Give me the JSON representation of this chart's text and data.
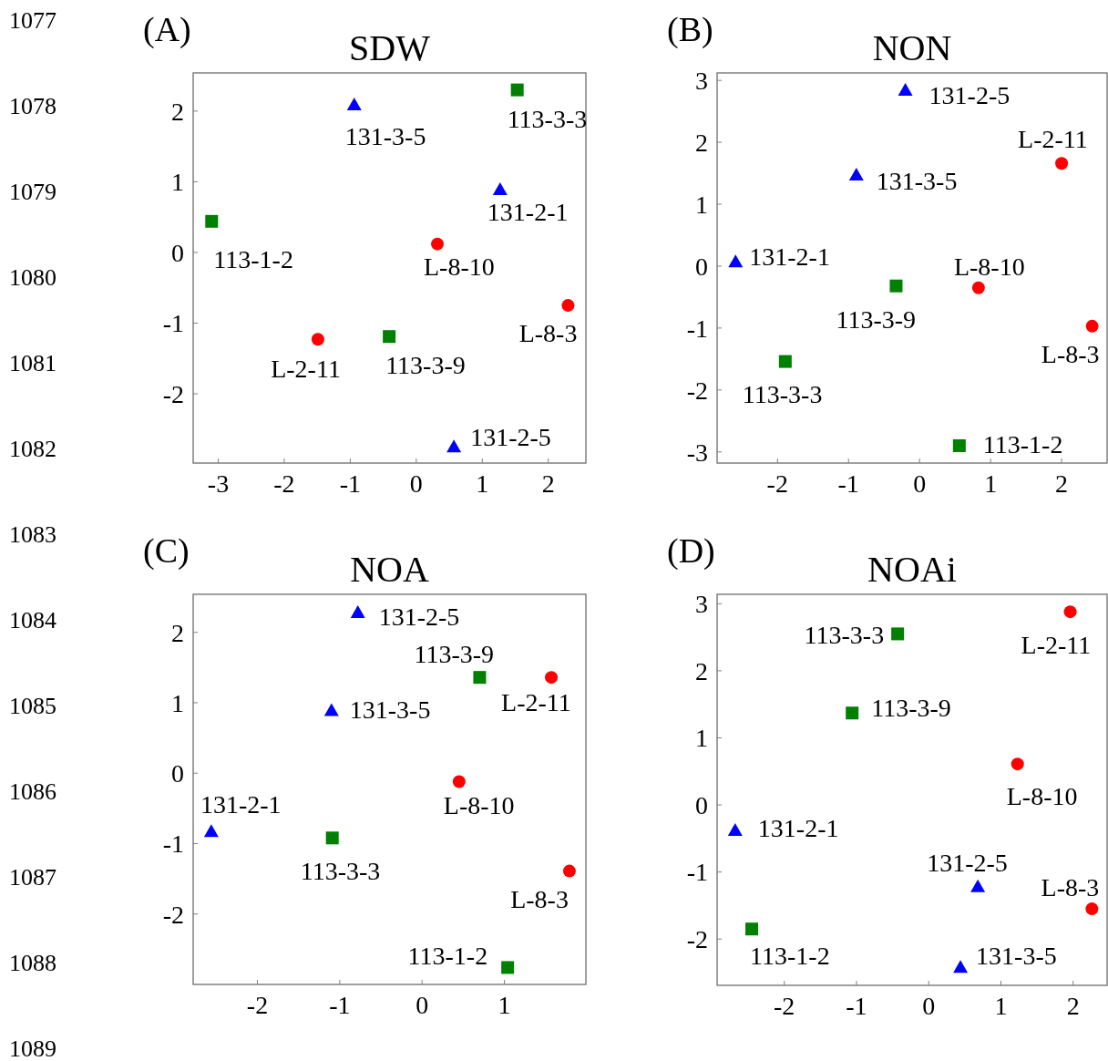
{
  "chart_data": [
    {
      "type": "scatter",
      "title": "SDW",
      "xlim": [
        -3.38,
        2.57
      ],
      "ylim": [
        -2.98,
        2.54
      ],
      "xticks": [
        -3,
        -2,
        -1,
        0,
        1,
        2
      ],
      "yticks": [
        -2,
        -1,
        0,
        1,
        2
      ],
      "series": [
        {
          "color": "#ff0000",
          "marker": "circle",
          "x": [
            0.32,
            2.3,
            -1.49
          ],
          "values": [
            0.12,
            -0.75,
            -1.23
          ]
        },
        {
          "color": "#008000",
          "marker": "square",
          "x": [
            1.53,
            -3.1,
            -0.41
          ],
          "values": [
            2.3,
            0.44,
            -1.19
          ]
        },
        {
          "color": "#0000ff",
          "marker": "triangle",
          "x": [
            -0.94,
            1.27,
            0.57
          ],
          "values": [
            2.09,
            0.89,
            -2.75
          ]
        }
      ],
      "annotations": [
        "(A)",
        {
          "text": "113-3-3",
          "x": 1.53,
          "y": 2.3
        },
        {
          "text": "131-3-5",
          "x": -0.94,
          "y": 2.09
        },
        {
          "text": "131-2-1",
          "x": 1.27,
          "y": 0.89
        },
        {
          "text": "113-1-2",
          "x": -3.1,
          "y": 0.44
        },
        {
          "text": "L-8-10",
          "x": 0.32,
          "y": 0.12
        },
        {
          "text": "L-8-3",
          "x": 2.3,
          "y": -0.75
        },
        {
          "text": "L-2-11",
          "x": -1.49,
          "y": -1.23
        },
        {
          "text": "113-3-9",
          "x": -0.41,
          "y": -1.19
        },
        {
          "text": "131-2-5",
          "x": 0.57,
          "y": -2.75
        },
        "1077",
        "1078",
        "1079",
        "1080",
        "1081",
        "1082",
        "1083",
        "1084",
        "1085",
        "1086",
        "1087",
        "1088",
        "1089"
      ]
    },
    {
      "type": "scatter",
      "title": "NON",
      "xlim": [
        -2.85,
        2.64
      ],
      "ylim": [
        -3.18,
        3.12
      ],
      "xticks": [
        -2,
        -1,
        0,
        1,
        2
      ],
      "yticks": [
        -3,
        -2,
        -1,
        0,
        1,
        2,
        3
      ],
      "series": [
        {
          "color": "#ff0000",
          "marker": "circle",
          "x": [
            2.0,
            0.83,
            2.43
          ],
          "values": [
            1.66,
            -0.35,
            -0.97
          ]
        },
        {
          "color": "#008000",
          "marker": "square",
          "x": [
            -0.33,
            -1.89,
            0.56
          ],
          "values": [
            -0.32,
            -1.54,
            -2.9
          ]
        },
        {
          "color": "#0000ff",
          "marker": "triangle",
          "x": [
            -0.2,
            -0.89,
            -2.59
          ],
          "values": [
            2.84,
            1.47,
            0.07
          ]
        }
      ],
      "annotations": [
        "(B)",
        {
          "text": "131-2-5",
          "x": -0.2,
          "y": 2.84
        },
        {
          "text": "L-2-11",
          "x": 2.0,
          "y": 1.66
        },
        {
          "text": "131-3-5",
          "x": -0.89,
          "y": 1.47
        },
        {
          "text": "131-2-1",
          "x": -2.59,
          "y": 0.07
        },
        {
          "text": "113-3-9",
          "x": -0.33,
          "y": -0.32
        },
        {
          "text": "L-8-10",
          "x": 0.83,
          "y": -0.35
        },
        {
          "text": "L-8-3",
          "x": 2.43,
          "y": -0.97
        },
        {
          "text": "113-3-3",
          "x": -1.89,
          "y": -1.54
        },
        {
          "text": "113-1-2",
          "x": 0.56,
          "y": -2.9
        }
      ]
    },
    {
      "type": "scatter",
      "title": "NOA",
      "xlim": [
        -2.78,
        1.99
      ],
      "ylim": [
        -3.0,
        2.54
      ],
      "xticks": [
        -2,
        -1,
        0,
        1
      ],
      "yticks": [
        -2,
        -1,
        0,
        1,
        2
      ],
      "series": [
        {
          "color": "#ff0000",
          "marker": "circle",
          "x": [
            1.57,
            0.45,
            1.79
          ],
          "values": [
            1.36,
            -0.12,
            -1.39
          ]
        },
        {
          "color": "#008000",
          "marker": "square",
          "x": [
            0.7,
            -1.09,
            1.04
          ],
          "values": [
            1.36,
            -0.92,
            -2.76
          ]
        },
        {
          "color": "#0000ff",
          "marker": "triangle",
          "x": [
            -0.78,
            -1.1,
            -2.56
          ],
          "values": [
            2.28,
            0.89,
            -0.83
          ]
        }
      ],
      "annotations": [
        "(C)",
        {
          "text": "131-2-5",
          "x": -0.78,
          "y": 2.28
        },
        {
          "text": "113-3-9",
          "x": 0.7,
          "y": 1.36
        },
        {
          "text": "L-2-11",
          "x": 1.57,
          "y": 1.36
        },
        {
          "text": "131-3-5",
          "x": -1.1,
          "y": 0.89
        },
        {
          "text": "L-8-10",
          "x": 0.45,
          "y": -0.12
        },
        {
          "text": "131-2-1",
          "x": -2.56,
          "y": -0.83
        },
        {
          "text": "113-3-3",
          "x": -1.09,
          "y": -0.92
        },
        {
          "text": "L-8-3",
          "x": 1.79,
          "y": -1.39
        },
        {
          "text": "113-1-2",
          "x": 1.04,
          "y": -2.76
        }
      ]
    },
    {
      "type": "scatter",
      "title": "NOAi",
      "xlim": [
        -2.93,
        2.47
      ],
      "ylim": [
        -2.69,
        3.14
      ],
      "xticks": [
        -2,
        -1,
        0,
        1,
        2
      ],
      "yticks": [
        -2,
        -1,
        0,
        1,
        2,
        3
      ],
      "series": [
        {
          "color": "#ff0000",
          "marker": "circle",
          "x": [
            1.96,
            1.23,
            2.26
          ],
          "values": [
            2.88,
            0.61,
            -1.55
          ]
        },
        {
          "color": "#008000",
          "marker": "square",
          "x": [
            -0.43,
            -1.06,
            -2.45
          ],
          "values": [
            2.55,
            1.37,
            -1.85
          ]
        },
        {
          "color": "#0000ff",
          "marker": "triangle",
          "x": [
            -2.68,
            0.68,
            0.44
          ],
          "values": [
            -0.38,
            -1.22,
            -2.42
          ]
        }
      ],
      "annotations": [
        "(D)",
        {
          "text": "L-2-11",
          "x": 1.96,
          "y": 2.88
        },
        {
          "text": "113-3-3",
          "x": -0.43,
          "y": 2.55
        },
        {
          "text": "113-3-9",
          "x": -1.06,
          "y": 1.37
        },
        {
          "text": "L-8-10",
          "x": 1.23,
          "y": 0.61
        },
        {
          "text": "131-2-1",
          "x": -2.68,
          "y": -0.38
        },
        {
          "text": "131-2-5",
          "x": 0.68,
          "y": -1.22
        },
        {
          "text": "L-8-3",
          "x": 2.26,
          "y": -1.55
        },
        {
          "text": "113-1-2",
          "x": -2.45,
          "y": -1.85
        },
        {
          "text": "131-3-5",
          "x": 0.44,
          "y": -2.42
        }
      ]
    }
  ]
}
